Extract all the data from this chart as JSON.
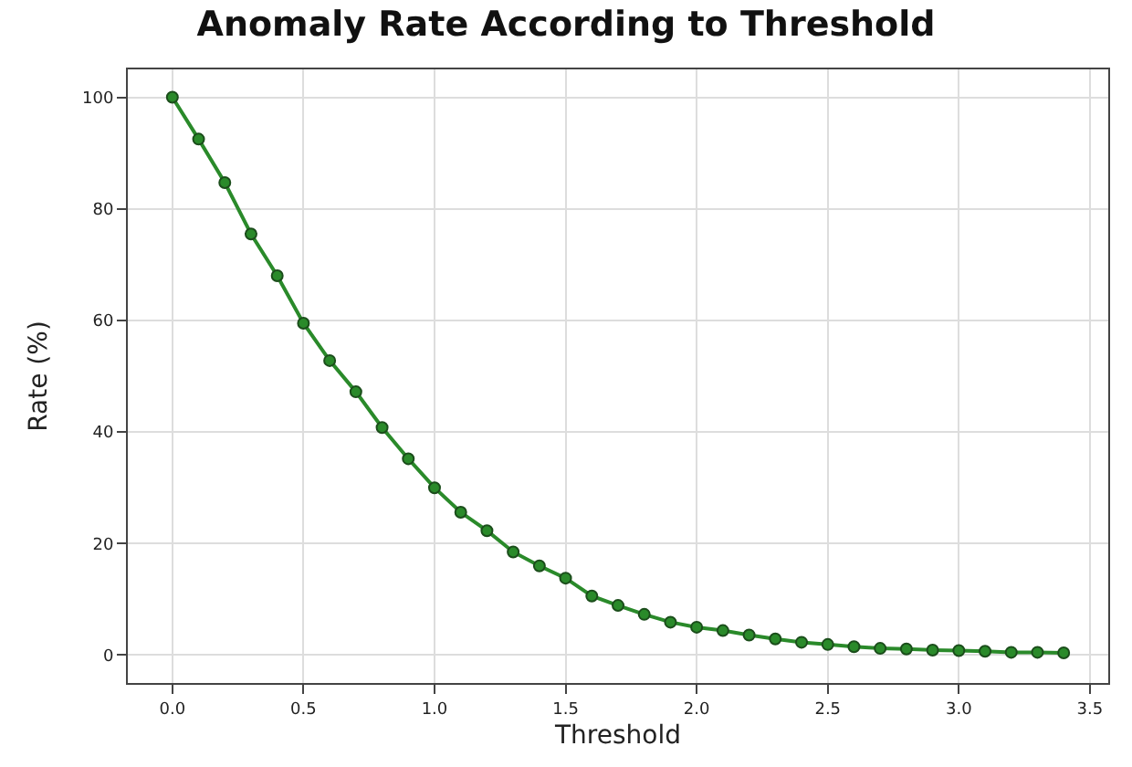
{
  "chart_data": {
    "type": "line",
    "title": "Anomaly Rate According to Threshold",
    "xlabel": "Threshold",
    "ylabel": "Rate (%)",
    "x": [
      0.0,
      0.1,
      0.2,
      0.3,
      0.4,
      0.5,
      0.6,
      0.7,
      0.8,
      0.9,
      1.0,
      1.1,
      1.2,
      1.3,
      1.4,
      1.5,
      1.6,
      1.7,
      1.8,
      1.9,
      2.0,
      2.1,
      2.2,
      2.3,
      2.4,
      2.5,
      2.6,
      2.7,
      2.8,
      2.9,
      3.0,
      3.1,
      3.2,
      3.3,
      3.4
    ],
    "series": [
      {
        "color": "#2a8a2a",
        "values": [
          100,
          92.5,
          84.7,
          75.5,
          68,
          59.5,
          52.8,
          47.2,
          40.8,
          35.2,
          30,
          25.6,
          22.3,
          18.5,
          16,
          13.8,
          10.6,
          8.9,
          7.3,
          5.9,
          5,
          4.4,
          3.6,
          2.9,
          2.3,
          1.9,
          1.5,
          1.2,
          1.1,
          0.9,
          0.8,
          0.7,
          0.5,
          0.5,
          0.4
        ]
      }
    ],
    "xlim": [
      -0.17,
      3.57
    ],
    "xticks": [
      {
        "value": 0,
        "label": "0.0"
      },
      {
        "value": 0.5,
        "label": "0.5"
      },
      {
        "value": 1,
        "label": "1.0"
      },
      {
        "value": 1.5,
        "label": "1.5"
      },
      {
        "value": 2,
        "label": "2.0"
      },
      {
        "value": 2.5,
        "label": "2.5"
      },
      {
        "value": 3,
        "label": "3.0"
      },
      {
        "value": 3.5,
        "label": "3.5"
      }
    ],
    "ylim": [
      -5,
      105
    ],
    "yticks": [
      0,
      20,
      40,
      60,
      80,
      100
    ],
    "grid": true,
    "marker": "circle",
    "line_style": "solid"
  }
}
